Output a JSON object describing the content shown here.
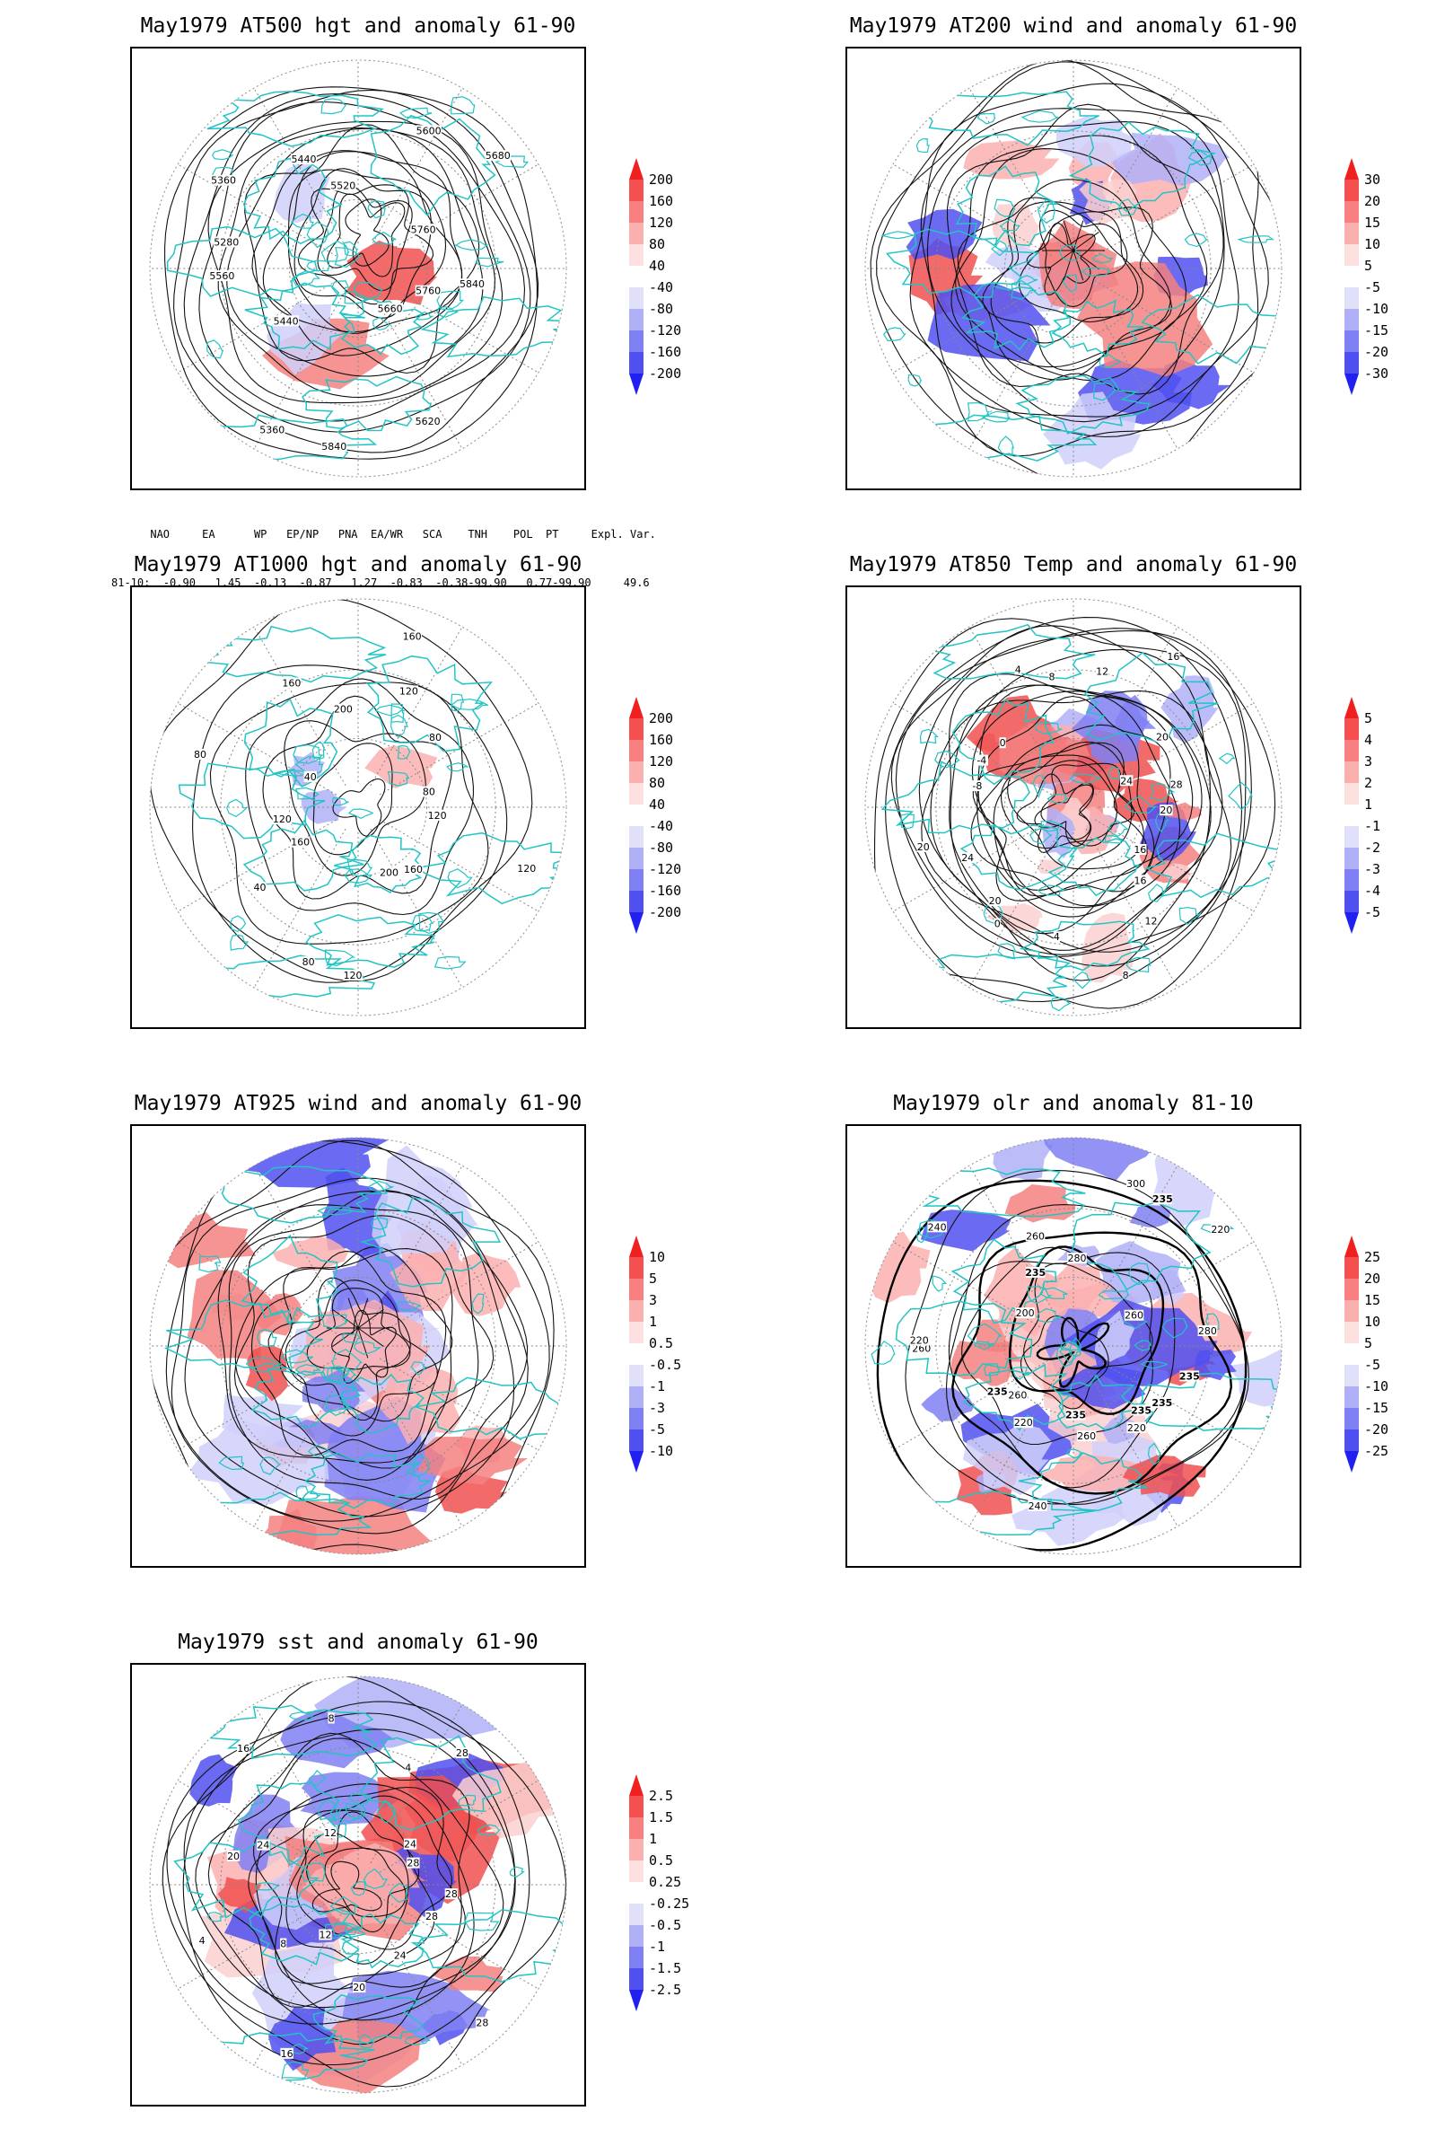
{
  "panels": [
    {
      "id": "p1",
      "title": "May1979 AT500 hgt and anomaly 61-90",
      "colorbar": [
        "200",
        "160",
        "120",
        "80",
        "40",
        "-40",
        "-80",
        "-120",
        "-160",
        "-200"
      ],
      "contour_labels": [
        "5760",
        "5660",
        "5620",
        "5840",
        "5360",
        "5440",
        "5560",
        "5280",
        "5360",
        "5440",
        "5520",
        "5600",
        "5680",
        "5760",
        "5840"
      ]
    },
    {
      "id": "p2",
      "title": "May1979 AT200 wind and anomaly 61-90",
      "colorbar": [
        "30",
        "20",
        "15",
        "10",
        "5",
        "-5",
        "-10",
        "-15",
        "-20",
        "-30"
      ],
      "contour_labels": []
    },
    {
      "id": "p3",
      "title": "May1979 AT1000 hgt and anomaly 61-90",
      "colorbar": [
        "200",
        "160",
        "120",
        "80",
        "40",
        "-40",
        "-80",
        "-120",
        "-160",
        "-200"
      ],
      "contour_labels": [
        "120",
        "160",
        "200",
        "120",
        "80",
        "40",
        "160",
        "120",
        "80",
        "40",
        "160",
        "200",
        "160",
        "120",
        "80",
        "80",
        "120"
      ]
    },
    {
      "id": "p4",
      "title": "May1979 AT850 Temp and anomaly 61-90",
      "colorbar": [
        "5",
        "4",
        "3",
        "2",
        "1",
        "-1",
        "-2",
        "-3",
        "-4",
        "-5"
      ],
      "contour_labels": [
        "16",
        "16",
        "12",
        "8",
        "4",
        "0",
        "20",
        "24",
        "20",
        "-8",
        "-4",
        "0",
        "4",
        "8",
        "12",
        "16",
        "20",
        "24",
        "28",
        "20"
      ]
    },
    {
      "id": "p5",
      "title": "May1979 AT925 wind and anomaly 61-90",
      "colorbar": [
        "10",
        "5",
        "3",
        "1",
        "0.5",
        "-0.5",
        "-1",
        "-3",
        "-5",
        "-10"
      ],
      "contour_labels": []
    },
    {
      "id": "p6",
      "title": "May1979 olr and anomaly 81-10",
      "colorbar": [
        "25",
        "20",
        "15",
        "10",
        "5",
        "-5",
        "-10",
        "-15",
        "-20",
        "-25"
      ],
      "contour_labels": [
        "235",
        "235",
        "220",
        "260",
        "235",
        "240",
        "220",
        "260",
        "235",
        "260",
        "220",
        "200",
        "240",
        "235",
        "260",
        "280",
        "300",
        "235",
        "220",
        "260",
        "280",
        "235"
      ]
    },
    {
      "id": "p7",
      "title": "May1979 sst and anomaly 61-90",
      "colorbar": [
        "2.5",
        "1.5",
        "1",
        "0.5",
        "0.25",
        "-0.25",
        "-0.5",
        "-1",
        "-1.5",
        "-2.5"
      ],
      "contour_labels": [
        "28",
        "28",
        "24",
        "20",
        "16",
        "12",
        "8",
        "4",
        "20",
        "24",
        "16",
        "12",
        "8",
        "4",
        "28",
        "24",
        "28",
        "28"
      ]
    }
  ],
  "indices": {
    "header": "      NAO     EA      WP   EP/NP   PNA  EA/WR   SCA    TNH    POL  PT     Expl. Var.",
    "row": "81-10:  -0.90   1.45  -0.13  -0.87   1.27  -0.83  -0.38-99.90   0.77-99.90     49.6"
  }
}
